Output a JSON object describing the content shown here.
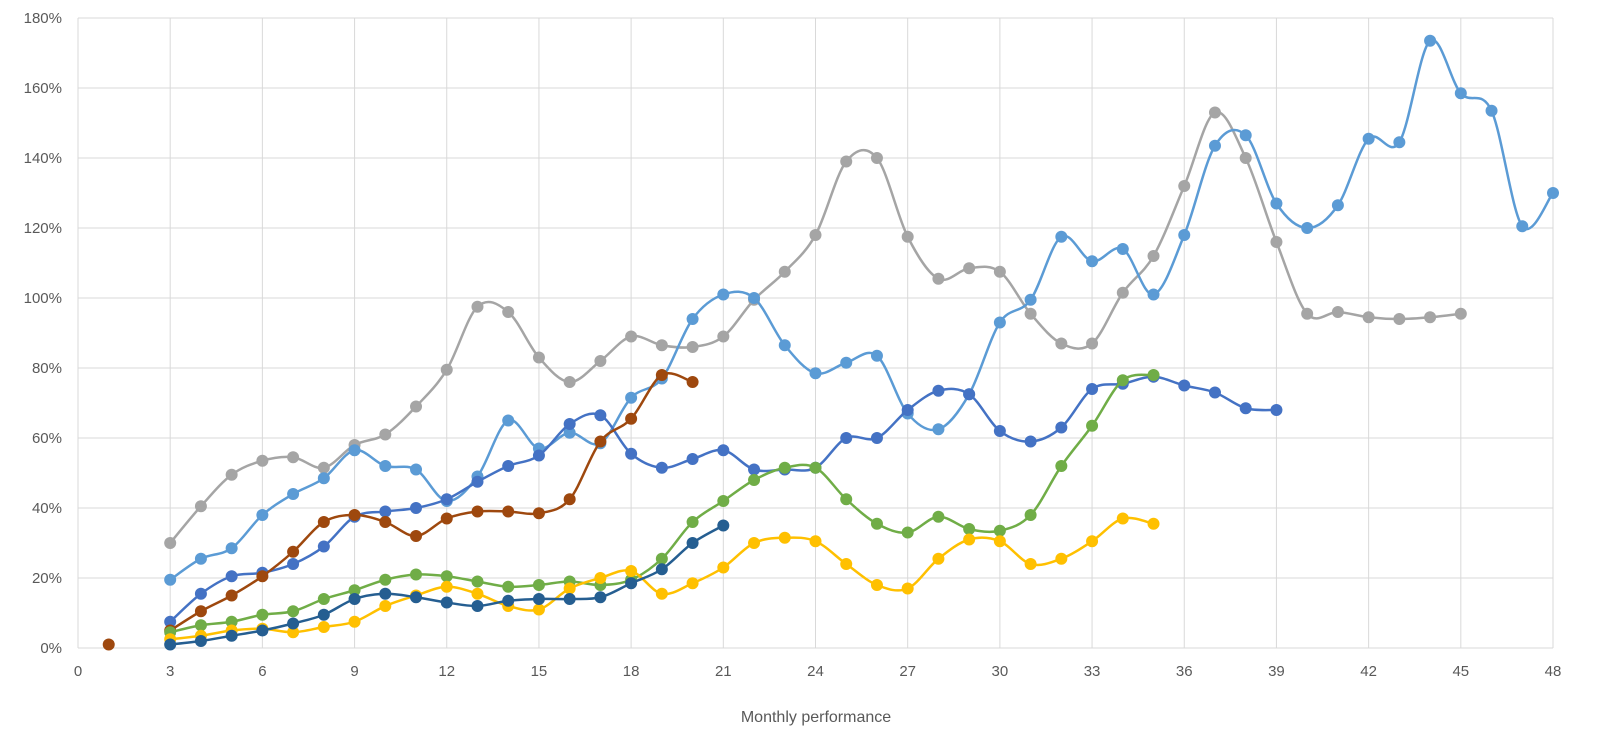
{
  "chart_data": {
    "type": "line",
    "title": "",
    "xlabel": "Monthly performance",
    "ylabel": "",
    "xlim": [
      0,
      48
    ],
    "ylim": [
      0,
      180
    ],
    "x_ticks": [
      0,
      3,
      6,
      9,
      12,
      15,
      18,
      21,
      24,
      27,
      30,
      33,
      36,
      39,
      42,
      45,
      48
    ],
    "y_ticks": [
      0,
      20,
      40,
      60,
      80,
      100,
      120,
      140,
      160,
      180
    ],
    "y_tick_labels": [
      "0%",
      "20%",
      "40%",
      "60%",
      "80%",
      "100%",
      "120%",
      "140%",
      "160%",
      "180%"
    ],
    "grid": true,
    "smooth": true,
    "series": [
      {
        "color": "#a5a5a5",
        "x": [
          3,
          4,
          5,
          6,
          7,
          8,
          9,
          10,
          11,
          12,
          13,
          14,
          15,
          16,
          17,
          18,
          19,
          20,
          21,
          22,
          23,
          24,
          25,
          26,
          27,
          28,
          29,
          30,
          31,
          32,
          33,
          34,
          35,
          36,
          37,
          38,
          39,
          40,
          41,
          42,
          43,
          44,
          45
        ],
        "y": [
          30,
          40.5,
          49.5,
          53.5,
          54.5,
          51.5,
          58,
          61,
          69,
          79.5,
          97.5,
          96,
          83,
          76,
          82,
          89,
          86.5,
          86,
          89,
          99.5,
          107.5,
          118,
          139,
          140,
          117.5,
          105.5,
          108.5,
          107.5,
          95.5,
          87,
          87,
          101.5,
          112,
          132,
          153,
          140,
          116,
          95.5,
          96,
          94.5,
          94,
          94.5,
          95.5
        ]
      },
      {
        "color": "#5b9bd5",
        "x": [
          3,
          4,
          5,
          6,
          7,
          8,
          9,
          10,
          11,
          12,
          13,
          14,
          15,
          16,
          17,
          18,
          19,
          20,
          21,
          22,
          23,
          24,
          25,
          26,
          27,
          28,
          29,
          30,
          31,
          32,
          33,
          34,
          35,
          36,
          37,
          38,
          39,
          40,
          41,
          42,
          43,
          44,
          45,
          46,
          47,
          48
        ],
        "y": [
          19.5,
          25.5,
          28.5,
          38,
          44,
          48.5,
          56.5,
          52,
          51,
          42,
          49,
          65,
          57,
          61.5,
          58.5,
          71.5,
          77,
          94,
          101,
          100,
          86.5,
          78.5,
          81.5,
          83.5,
          67,
          62.5,
          72.5,
          93,
          99.5,
          117.5,
          110.5,
          114,
          101,
          118,
          143.5,
          146.5,
          127,
          120,
          126.5,
          145.5,
          144.5,
          173.5,
          158.5,
          153.5,
          120.5,
          130
        ]
      },
      {
        "color": "#4472c4",
        "x": [
          3,
          4,
          5,
          6,
          7,
          8,
          9,
          10,
          11,
          12,
          13,
          14,
          15,
          16,
          17,
          18,
          19,
          20,
          21,
          22,
          23,
          24,
          25,
          26,
          27,
          28,
          29,
          30,
          31,
          32,
          33,
          34,
          35,
          36,
          37,
          38,
          39
        ],
        "y": [
          7.5,
          15.5,
          20.5,
          21.5,
          24,
          29,
          37.5,
          39,
          40,
          42.5,
          47.5,
          52,
          55,
          64,
          66.5,
          55.5,
          51.5,
          54,
          56.5,
          51,
          51,
          51.5,
          60,
          60,
          68,
          73.5,
          72.5,
          62,
          59,
          63,
          74,
          75.5,
          77.5,
          75,
          73,
          68.5,
          68
        ]
      },
      {
        "color": "#9e480e",
        "x": [
          1,
          3,
          4,
          5,
          6,
          7,
          8,
          9,
          10,
          11,
          12,
          13,
          14,
          15,
          16,
          17,
          18,
          19,
          20
        ],
        "y": [
          1,
          5,
          10.5,
          15,
          20.5,
          27.5,
          36,
          38,
          36,
          32,
          37,
          39,
          39,
          38.5,
          42.5,
          59,
          65.5,
          78,
          76
        ]
      },
      {
        "color": "#70ad47",
        "x": [
          3,
          4,
          5,
          6,
          7,
          8,
          9,
          10,
          11,
          12,
          13,
          14,
          15,
          16,
          17,
          18,
          19,
          20,
          21,
          22,
          23,
          24,
          25,
          26,
          27,
          28,
          29,
          30,
          31,
          32,
          33,
          34,
          35
        ],
        "y": [
          4.5,
          6.5,
          7.5,
          9.5,
          10.5,
          14,
          16.5,
          19.5,
          21,
          20.5,
          19,
          17.5,
          18,
          19,
          18,
          19.5,
          25.5,
          36,
          42,
          48,
          51.5,
          51.5,
          42.5,
          35.5,
          33,
          37.5,
          34,
          33.5,
          38,
          52,
          63.5,
          76.5,
          78
        ]
      },
      {
        "color": "#ffc000",
        "x": [
          3,
          4,
          5,
          6,
          7,
          8,
          9,
          10,
          11,
          12,
          13,
          14,
          15,
          16,
          17,
          18,
          19,
          20,
          21,
          22,
          23,
          24,
          25,
          26,
          27,
          28,
          29,
          30,
          31,
          32,
          33,
          34,
          35
        ],
        "y": [
          2.5,
          3.5,
          5,
          5.5,
          4.5,
          6,
          7.5,
          12,
          15,
          17.5,
          15.5,
          12,
          11,
          17,
          20,
          22,
          15.5,
          18.5,
          23,
          30,
          31.5,
          30.5,
          24,
          18,
          17,
          25.5,
          31,
          30.5,
          24,
          25.5,
          30.5,
          37,
          35.5
        ]
      },
      {
        "color": "#255e91",
        "x": [
          3,
          4,
          5,
          6,
          7,
          8,
          9,
          10,
          11,
          12,
          13,
          14,
          15,
          16,
          17,
          18,
          19,
          20,
          21
        ],
        "y": [
          1,
          2,
          3.5,
          5,
          7,
          9.5,
          14,
          15.5,
          14.5,
          13,
          12,
          13.5,
          14,
          14,
          14.5,
          18.5,
          22.5,
          30,
          35
        ]
      }
    ]
  }
}
